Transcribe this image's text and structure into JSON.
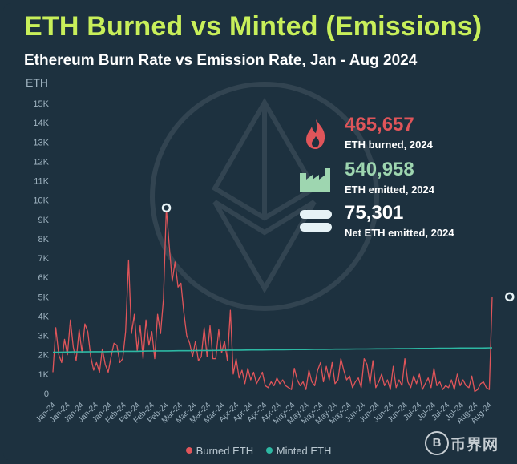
{
  "header": {
    "title": "ETH Burned vs Minted (Emissions)",
    "subtitle": "Ethereum Burn Rate vs Emission Rate, Jan - Aug 2024",
    "unit": "ETH"
  },
  "stats": [
    {
      "value": "465,657",
      "label": "ETH burned, 2024",
      "color": "#e0555a",
      "icon": "fire-icon"
    },
    {
      "value": "540,958",
      "label": "ETH emitted, 2024",
      "color": "#9ed6b0",
      "icon": "factory-icon"
    },
    {
      "value": "75,301",
      "label": "Net ETH emitted, 2024",
      "color": "#ffffff",
      "icon": "equals-icon"
    }
  ],
  "legend": {
    "burned": "Burned ETH",
    "minted": "Minted ETH"
  },
  "watermark": {
    "symbol": "B",
    "text": "币界网"
  },
  "colors": {
    "burned": "#e0555a",
    "minted": "#2db8a3",
    "title": "#c8ef5a",
    "axis_text": "#9fb3c0"
  },
  "chart_data": {
    "type": "line",
    "title": "Ethereum Burn Rate vs Emission Rate, Jan - Aug 2024",
    "ylabel": "ETH",
    "ylim": [
      0,
      15000
    ],
    "y_ticks": [
      "0",
      "1K",
      "2K",
      "3K",
      "4K",
      "5K",
      "6K",
      "7K",
      "8K",
      "9K",
      "10K",
      "11K",
      "12K",
      "13K",
      "14K",
      "15K"
    ],
    "x_ticks": [
      "Jan-24",
      "Jan-24",
      "Jan-24",
      "Jan-24",
      "Jan-24",
      "Feb-24",
      "Feb-24",
      "Feb-24",
      "Feb-24",
      "Mar-24",
      "Mar-24",
      "Mar-24",
      "Mar-24",
      "Apr-24",
      "Apr-24",
      "Apr-24",
      "Apr-24",
      "May-24",
      "May-24",
      "May-24",
      "May-24",
      "May-24",
      "Jun-24",
      "Jun-24",
      "Jun-24",
      "Jun-24",
      "Jul-24",
      "Jul-24",
      "Jul-24",
      "Jul-24",
      "Aug-24",
      "Aug-24"
    ],
    "grid": false,
    "legend_position": "bottom-center",
    "series": [
      {
        "name": "Burned ETH",
        "values": [
          1100,
          3400,
          2000,
          1600,
          2800,
          2000,
          3800,
          2400,
          1700,
          3300,
          2100,
          3600,
          3200,
          1900,
          1200,
          1600,
          1100,
          2300,
          1500,
          1100,
          1900,
          2600,
          2500,
          1600,
          1800,
          3200,
          6900,
          3100,
          4100,
          2200,
          3500,
          1800,
          3800,
          2500,
          3200,
          1800,
          4100,
          3100,
          4900,
          9600,
          7600,
          5800,
          6800,
          5500,
          5700,
          4200,
          3000,
          2600,
          1900,
          2700,
          1700,
          1900,
          3400,
          1900,
          3500,
          1800,
          1800,
          3300,
          2100,
          2700,
          1700,
          4300,
          1000,
          1800,
          800,
          1200,
          500,
          1300,
          700,
          1100,
          500,
          800,
          1100,
          400,
          300,
          600,
          400,
          800,
          500,
          700,
          400,
          300,
          200,
          1300,
          700,
          400,
          600,
          200,
          1200,
          600,
          400,
          1200,
          1600,
          600,
          1400,
          700,
          1600,
          500,
          700,
          1800,
          1200,
          700,
          900,
          300,
          600,
          800,
          300,
          1800,
          1500,
          500,
          1700,
          300,
          600,
          1000,
          400,
          700,
          200,
          1400,
          300,
          700,
          400,
          1800,
          600,
          300,
          900,
          500,
          1000,
          200,
          500,
          800,
          300,
          1300,
          400,
          600,
          200,
          400,
          300,
          700,
          200,
          1000,
          400,
          700,
          400,
          300,
          900,
          100,
          200,
          500,
          600,
          300,
          200,
          5000
        ],
        "highlights": [
          {
            "index": 39,
            "value": 9600
          },
          {
            "index": 157,
            "value": 5000
          }
        ]
      },
      {
        "name": "Minted ETH",
        "values": [
          2130,
          2140,
          2150,
          2150,
          2160,
          2160,
          2170,
          2180,
          2180,
          2190,
          2200,
          2200,
          2210,
          2210,
          2220,
          2220,
          2230,
          2240,
          2240,
          2250,
          2250,
          2260,
          2260,
          2270,
          2270,
          2280,
          2280,
          2290,
          2290,
          2300,
          2300,
          2310,
          2310,
          2320,
          2320,
          2330,
          2330,
          2340,
          2340,
          2350,
          2350,
          2350,
          2360
        ]
      }
    ]
  }
}
